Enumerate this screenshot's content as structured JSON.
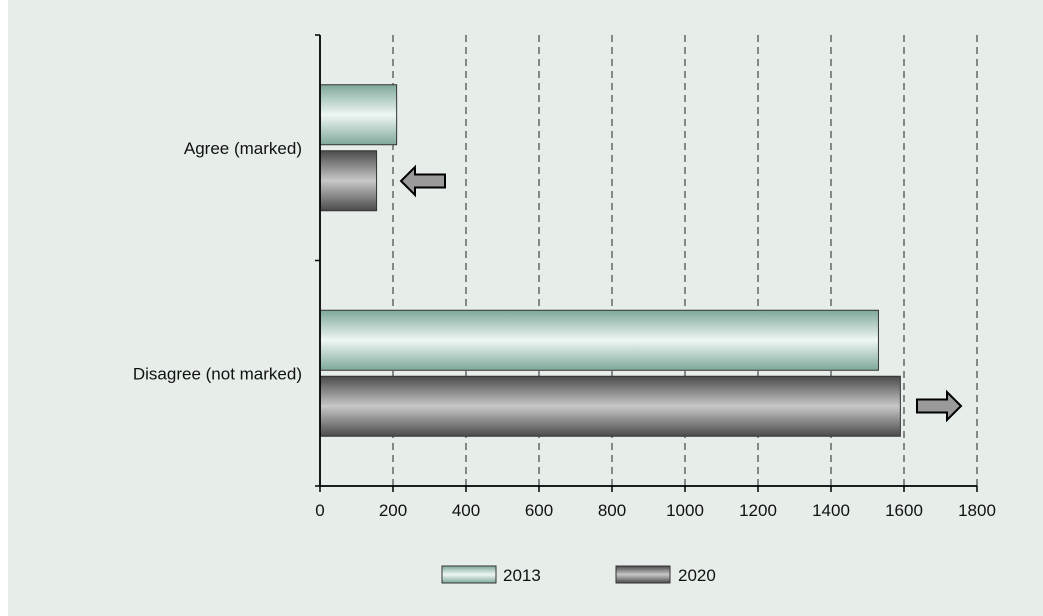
{
  "chart_data": {
    "type": "bar",
    "orientation": "horizontal",
    "categories": [
      "Agree (marked)",
      "Disagree (not marked)"
    ],
    "series": [
      {
        "name": "2013",
        "values": [
          210,
          1530
        ],
        "color": "#cfe6de"
      },
      {
        "name": "2020",
        "values": [
          155,
          1590
        ],
        "color": "#8c8c8c"
      }
    ],
    "xlim": [
      0,
      1800
    ],
    "x_ticks": [
      0,
      200,
      400,
      600,
      800,
      1000,
      1200,
      1400,
      1600,
      1800
    ],
    "grid": "vertical dashed",
    "legend_position": "bottom",
    "annotations": [
      {
        "type": "arrow",
        "direction": "left",
        "category": "Agree (marked)"
      },
      {
        "type": "arrow",
        "direction": "right",
        "category": "Disagree (not marked)"
      }
    ],
    "title": "",
    "xlabel": "",
    "ylabel": ""
  }
}
